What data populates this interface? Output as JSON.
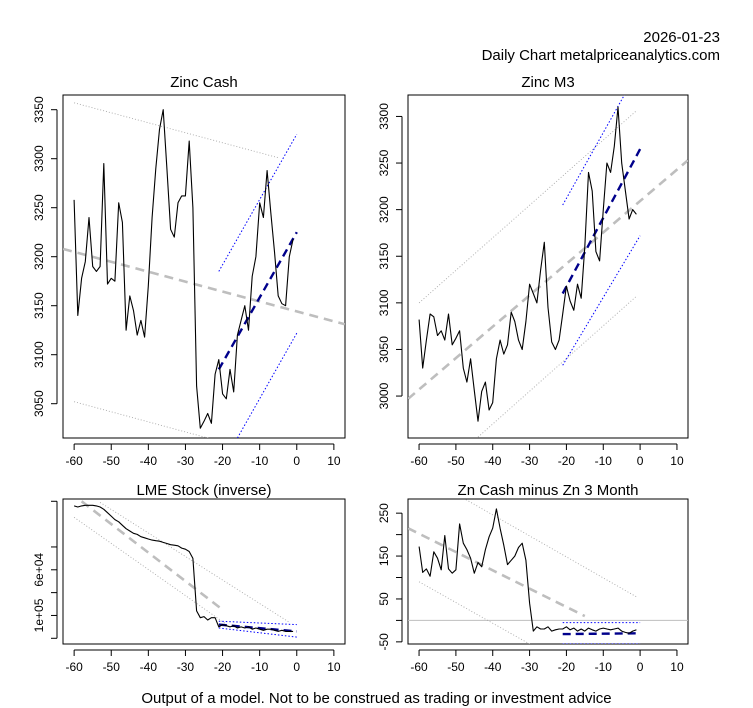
{
  "header": {
    "date": "2026-01-23",
    "subtitle": "Daily Chart metalpriceanalytics.com"
  },
  "footer": {
    "disclaimer": "Output of a model. Not to be construed as trading or investment advice"
  },
  "colors": {
    "price_line": "#000000",
    "trend_line": "#bebebe",
    "band_line": "#a9a9a9",
    "forecast": "#00008b",
    "forecast_band": "#0000ff"
  },
  "chart_data": [
    {
      "id": "zinc-cash",
      "type": "line",
      "title": "Zinc Cash",
      "xlim": [
        -63,
        13
      ],
      "ylim": [
        3015,
        3365
      ],
      "x_ticks": [
        -60,
        -50,
        -40,
        -30,
        -20,
        -10,
        0,
        10
      ],
      "y_ticks": [
        3050,
        3100,
        3150,
        3200,
        3250,
        3300,
        3350
      ],
      "y_tick_labels": [
        "3050",
        "3100",
        "3150",
        "3200",
        "3250",
        "3300",
        "3350"
      ],
      "series": [
        {
          "name": "price",
          "style": "solid-black",
          "x": [
            -60,
            -59,
            -58,
            -57,
            -56,
            -55,
            -54,
            -53,
            -52,
            -51,
            -50,
            -49,
            -48,
            -47,
            -46,
            -45,
            -44,
            -43,
            -42,
            -41,
            -40,
            -39,
            -38,
            -37,
            -36,
            -35,
            -34,
            -33,
            -32,
            -31,
            -30,
            -29,
            -28,
            -27,
            -26,
            -25,
            -24,
            -23,
            -22,
            -21,
            -20,
            -19,
            -18,
            -17,
            -16,
            -15,
            -14,
            -13,
            -12,
            -11,
            -10,
            -9,
            -8,
            -7,
            -6,
            -5,
            -4,
            -3,
            -2,
            -1
          ],
          "y": [
            3258,
            3140,
            3178,
            3195,
            3240,
            3190,
            3185,
            3190,
            3295,
            3172,
            3178,
            3175,
            3255,
            3235,
            3125,
            3160,
            3145,
            3120,
            3135,
            3118,
            3170,
            3240,
            3290,
            3330,
            3350,
            3290,
            3228,
            3220,
            3255,
            3262,
            3262,
            3318,
            3250,
            3068,
            3025,
            3032,
            3040,
            3030,
            3080,
            3095,
            3060,
            3055,
            3085,
            3062,
            3120,
            3135,
            3150,
            3125,
            3180,
            3200,
            3255,
            3240,
            3288,
            3245,
            3205,
            3160,
            3152,
            3150,
            3200,
            3218
          ]
        },
        {
          "name": "trend",
          "style": "dashed-gray",
          "x": [
            -63,
            13
          ],
          "y": [
            3208,
            3131
          ]
        },
        {
          "name": "upper-band",
          "style": "dotted-gray",
          "x": [
            -60,
            -5
          ],
          "y": [
            3357,
            3301
          ]
        },
        {
          "name": "lower-band",
          "style": "dotted-gray",
          "x": [
            -60,
            -23
          ],
          "y": [
            3052,
            3014
          ]
        },
        {
          "name": "forecast",
          "style": "dashed-blue",
          "x": [
            -21,
            0
          ],
          "y": [
            3085,
            3225
          ]
        },
        {
          "name": "forecast-upper",
          "style": "dotted-blue",
          "x": [
            -21,
            0
          ],
          "y": [
            3185,
            3325
          ]
        },
        {
          "name": "forecast-lower",
          "style": "dotted-blue",
          "x": [
            -16,
            0
          ],
          "y": [
            3015,
            3122
          ]
        }
      ]
    },
    {
      "id": "zinc-m3",
      "type": "line",
      "title": "Zinc M3",
      "xlim": [
        -63,
        13
      ],
      "ylim": [
        2955,
        3323
      ],
      "x_ticks": [
        -60,
        -50,
        -40,
        -30,
        -20,
        -10,
        0,
        10
      ],
      "y_ticks": [
        3000,
        3050,
        3100,
        3150,
        3200,
        3250,
        3300
      ],
      "y_tick_labels": [
        "3000",
        "3050",
        "3100",
        "3150",
        "3200",
        "3250",
        "3300"
      ],
      "series": [
        {
          "name": "price",
          "style": "solid-black",
          "x": [
            -60,
            -59,
            -58,
            -57,
            -56,
            -55,
            -54,
            -53,
            -52,
            -51,
            -50,
            -49,
            -48,
            -47,
            -46,
            -45,
            -44,
            -43,
            -42,
            -41,
            -40,
            -39,
            -38,
            -37,
            -36,
            -35,
            -34,
            -33,
            -32,
            -31,
            -30,
            -29,
            -28,
            -27,
            -26,
            -25,
            -24,
            -23,
            -22,
            -21,
            -20,
            -19,
            -18,
            -17,
            -16,
            -15,
            -14,
            -13,
            -12,
            -11,
            -10,
            -9,
            -8,
            -7,
            -6,
            -5,
            -4,
            -3,
            -2,
            -1
          ],
          "y": [
            3082,
            3030,
            3060,
            3088,
            3085,
            3065,
            3070,
            3060,
            3088,
            3055,
            3062,
            3070,
            3030,
            3015,
            3040,
            3006,
            2973,
            3005,
            3015,
            2985,
            2993,
            3040,
            3060,
            3045,
            3055,
            3090,
            3080,
            3060,
            3050,
            3080,
            3120,
            3110,
            3100,
            3135,
            3165,
            3095,
            3058,
            3050,
            3060,
            3088,
            3118,
            3102,
            3092,
            3120,
            3105,
            3160,
            3240,
            3220,
            3155,
            3145,
            3200,
            3250,
            3240,
            3268,
            3310,
            3250,
            3220,
            3190,
            3200,
            3195
          ]
        },
        {
          "name": "trend",
          "style": "dashed-gray",
          "x": [
            -63,
            13
          ],
          "y": [
            2997,
            3253
          ]
        },
        {
          "name": "upper-band",
          "style": "dotted-gray",
          "x": [
            -60,
            -1
          ],
          "y": [
            3100,
            3306
          ]
        },
        {
          "name": "lower-band",
          "style": "dotted-gray",
          "x": [
            -44,
            -1
          ],
          "y": [
            2956,
            3107
          ]
        },
        {
          "name": "forecast",
          "style": "dashed-blue",
          "x": [
            -21,
            0
          ],
          "y": [
            3110,
            3265
          ]
        },
        {
          "name": "forecast-upper",
          "style": "dotted-blue",
          "x": [
            -21,
            -4
          ],
          "y": [
            3205,
            3325
          ]
        },
        {
          "name": "forecast-lower",
          "style": "dotted-blue",
          "x": [
            -21,
            0
          ],
          "y": [
            3033,
            3172
          ]
        }
      ]
    },
    {
      "id": "lme-stock",
      "type": "line",
      "title": "LME Stock (inverse)",
      "xlim": [
        -63,
        13
      ],
      "ylim": [
        125000,
        -2000
      ],
      "x_ticks": [
        -60,
        -50,
        -40,
        -30,
        -20,
        -10,
        0,
        10
      ],
      "y_ticks": [
        60000,
        100000
      ],
      "y_tick_labels": [
        "6e+04",
        "1e+05"
      ],
      "y_extra_ticks": [
        0,
        40000,
        80000,
        120000
      ],
      "series": [
        {
          "name": "stock",
          "style": "solid-black",
          "x": [
            -60,
            -59,
            -58,
            -57,
            -56,
            -55,
            -54,
            -53,
            -52,
            -51,
            -50,
            -49,
            -48,
            -47,
            -46,
            -45,
            -44,
            -43,
            -42,
            -41,
            -40,
            -39,
            -38,
            -37,
            -36,
            -35,
            -34,
            -33,
            -32,
            -31,
            -30,
            -29,
            -28,
            -27,
            -26,
            -25,
            -24,
            -23,
            -22,
            -21,
            -20,
            -19,
            -18,
            -17,
            -16,
            -15,
            -14,
            -13,
            -12,
            -11,
            -10,
            -9,
            -8,
            -7,
            -6,
            -5,
            -4,
            -3,
            -2,
            -1
          ],
          "y": [
            4000,
            5000,
            4000,
            3500,
            3500,
            3500,
            4000,
            5000,
            7000,
            10000,
            13000,
            16000,
            18000,
            21000,
            24000,
            26000,
            28000,
            29000,
            31000,
            32000,
            33000,
            34000,
            34500,
            35000,
            36000,
            37000,
            38000,
            38500,
            39000,
            41000,
            42000,
            44000,
            50000,
            96000,
            102000,
            101000,
            104000,
            102000,
            102000,
            110000,
            108000,
            109000,
            110000,
            109000,
            111000,
            110000,
            111000,
            110000,
            112000,
            111000,
            112000,
            113000,
            112000,
            112000,
            113000,
            114000,
            113000,
            114000,
            114000,
            114000
          ]
        },
        {
          "name": "trend",
          "style": "dashed-gray",
          "x": [
            -58,
            -20
          ],
          "y": [
            0,
            95000
          ]
        },
        {
          "name": "upper-band",
          "style": "dotted-gray",
          "x": [
            -53,
            -2
          ],
          "y": [
            1000,
            106000
          ]
        },
        {
          "name": "lower-band",
          "style": "dotted-gray",
          "x": [
            -60,
            -18
          ],
          "y": [
            14000,
            110000
          ]
        },
        {
          "name": "forecast",
          "style": "dashed-blue",
          "x": [
            -21,
            0
          ],
          "y": [
            108000,
            114000
          ]
        },
        {
          "name": "forecast-upper",
          "style": "dotted-blue",
          "x": [
            -21,
            0
          ],
          "y": [
            105000,
            108000
          ]
        },
        {
          "name": "forecast-lower",
          "style": "dotted-blue",
          "x": [
            -21,
            0
          ],
          "y": [
            111000,
            119000
          ]
        }
      ]
    },
    {
      "id": "zn-cash-minus-3m",
      "type": "line",
      "title": "Zn Cash minus Zn 3 Month",
      "xlim": [
        -63,
        13
      ],
      "ylim": [
        -55,
        283
      ],
      "x_ticks": [
        -60,
        -50,
        -40,
        -30,
        -20,
        -10,
        0,
        10
      ],
      "y_ticks": [
        -50,
        50,
        150,
        250
      ],
      "y_tick_labels": [
        "-50",
        "50",
        "150",
        "250"
      ],
      "y_extra_ticks": [
        0,
        100,
        200
      ],
      "series": [
        {
          "name": "spread",
          "style": "solid-black",
          "x": [
            -60,
            -59,
            -58,
            -57,
            -56,
            -55,
            -54,
            -53,
            -52,
            -51,
            -50,
            -49,
            -48,
            -47,
            -46,
            -45,
            -44,
            -43,
            -42,
            -41,
            -40,
            -39,
            -38,
            -37,
            -36,
            -35,
            -34,
            -33,
            -32,
            -31,
            -30,
            -29,
            -28,
            -27,
            -26,
            -25,
            -24,
            -23,
            -22,
            -21,
            -20,
            -19,
            -18,
            -17,
            -16,
            -15,
            -14,
            -13,
            -12,
            -11,
            -10,
            -9,
            -8,
            -7,
            -6,
            -5,
            -4,
            -3,
            -2,
            -1
          ],
          "y": [
            172,
            112,
            120,
            103,
            160,
            145,
            118,
            198,
            120,
            110,
            118,
            225,
            180,
            165,
            145,
            110,
            135,
            125,
            165,
            195,
            215,
            260,
            215,
            175,
            130,
            140,
            150,
            170,
            180,
            140,
            40,
            -25,
            -15,
            -20,
            -20,
            -15,
            -25,
            -22,
            -20,
            -20,
            -15,
            -22,
            -18,
            -25,
            -20,
            -25,
            -18,
            -22,
            -25,
            -20,
            -18,
            -20,
            -22,
            -20,
            -18,
            -25,
            -28,
            -30,
            -25,
            -22
          ]
        },
        {
          "name": "zero-line",
          "style": "solid-gray",
          "x": [
            -63,
            13
          ],
          "y": [
            0,
            0
          ]
        },
        {
          "name": "trend",
          "style": "dashed-gray",
          "x": [
            -63,
            -15
          ],
          "y": [
            215,
            10
          ]
        },
        {
          "name": "upper-band",
          "style": "dotted-gray",
          "x": [
            -48,
            -1
          ],
          "y": [
            285,
            55
          ]
        },
        {
          "name": "lower-band",
          "style": "dotted-gray",
          "x": [
            -60,
            -30
          ],
          "y": [
            90,
            -55
          ]
        },
        {
          "name": "forecast",
          "style": "dashed-blue",
          "x": [
            -21,
            0
          ],
          "y": [
            -32,
            -30
          ]
        },
        {
          "name": "forecast-upper",
          "style": "dotted-blue",
          "x": [
            -21,
            0
          ],
          "y": [
            -5,
            -5
          ]
        },
        {
          "name": "forecast-lower",
          "style": "dotted-blue",
          "x": [
            -21,
            0
          ],
          "y": [
            -55,
            -55
          ]
        }
      ]
    }
  ]
}
